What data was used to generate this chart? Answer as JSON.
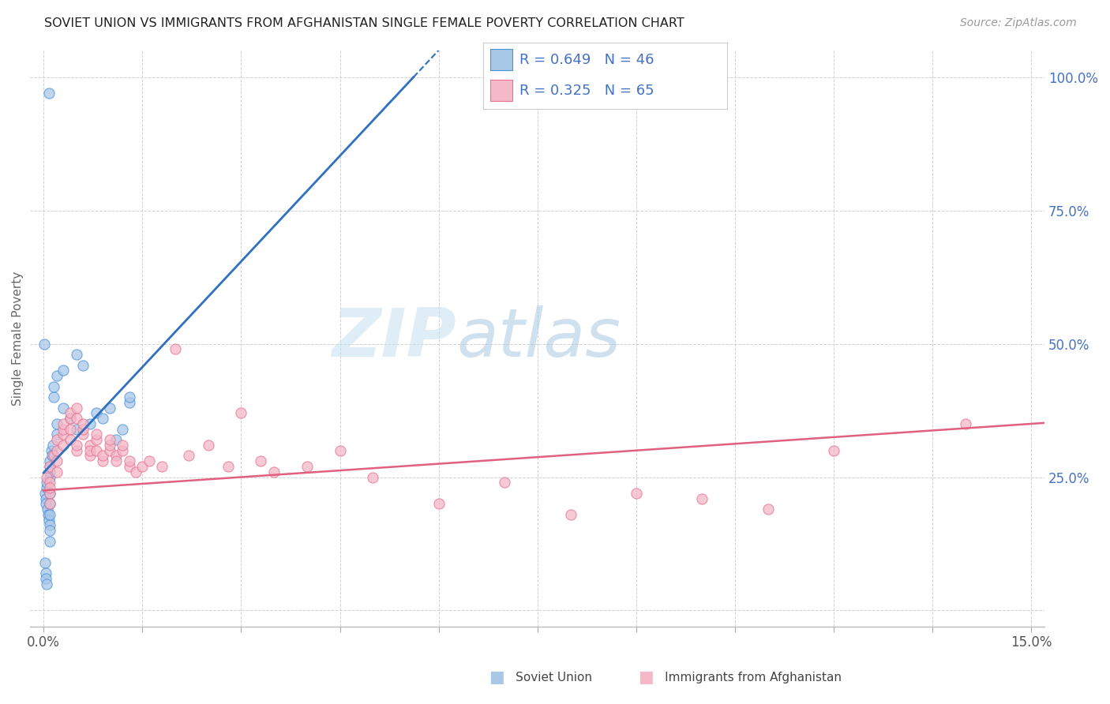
{
  "title": "SOVIET UNION VS IMMIGRANTS FROM AFGHANISTAN SINGLE FEMALE POVERTY CORRELATION CHART",
  "source": "Source: ZipAtlas.com",
  "ylabel": "Single Female Poverty",
  "watermark_zip": "ZIP",
  "watermark_atlas": "atlas",
  "blue_fill": "#a8c8e8",
  "blue_edge": "#4a90d9",
  "blue_line": "#3070c0",
  "pink_fill": "#f4b8c8",
  "pink_edge": "#e87090",
  "pink_line": "#e06080",
  "right_tick_color": "#4472c4",
  "background_color": "#ffffff",
  "grid_color": "#cccccc",
  "legend_r1_text": "R = 0.649   N = 46",
  "legend_r2_text": "R = 0.325   N = 65",
  "xlim": [
    -0.002,
    0.152
  ],
  "ylim": [
    -0.03,
    1.05
  ],
  "soviet_x": [
    0.0002,
    0.0003,
    0.0004,
    0.0005,
    0.0005,
    0.0006,
    0.0007,
    0.0008,
    0.0009,
    0.001,
    0.001,
    0.001,
    0.001,
    0.001,
    0.001,
    0.001,
    0.001,
    0.001,
    0.0012,
    0.0013,
    0.0014,
    0.0015,
    0.0015,
    0.002,
    0.002,
    0.002,
    0.003,
    0.003,
    0.004,
    0.005,
    0.005,
    0.006,
    0.007,
    0.008,
    0.009,
    0.01,
    0.011,
    0.012,
    0.013,
    0.013,
    0.0001,
    0.0002,
    0.0003,
    0.0004,
    0.0005,
    0.0008
  ],
  "soviet_y": [
    0.22,
    0.21,
    0.2,
    0.23,
    0.24,
    0.19,
    0.18,
    0.17,
    0.16,
    0.25,
    0.27,
    0.28,
    0.26,
    0.22,
    0.2,
    0.18,
    0.15,
    0.13,
    0.3,
    0.29,
    0.31,
    0.4,
    0.42,
    0.33,
    0.35,
    0.44,
    0.38,
    0.45,
    0.36,
    0.48,
    0.34,
    0.46,
    0.35,
    0.37,
    0.36,
    0.38,
    0.32,
    0.34,
    0.39,
    0.4,
    0.5,
    0.09,
    0.07,
    0.06,
    0.05,
    0.97
  ],
  "afghan_x": [
    0.0005,
    0.001,
    0.001,
    0.001,
    0.001,
    0.001,
    0.0015,
    0.002,
    0.002,
    0.002,
    0.002,
    0.003,
    0.003,
    0.003,
    0.003,
    0.004,
    0.004,
    0.004,
    0.004,
    0.005,
    0.005,
    0.005,
    0.005,
    0.006,
    0.006,
    0.006,
    0.007,
    0.007,
    0.007,
    0.008,
    0.008,
    0.008,
    0.009,
    0.009,
    0.01,
    0.01,
    0.01,
    0.011,
    0.011,
    0.012,
    0.012,
    0.013,
    0.013,
    0.014,
    0.015,
    0.016,
    0.018,
    0.02,
    0.022,
    0.025,
    0.028,
    0.03,
    0.033,
    0.035,
    0.04,
    0.045,
    0.05,
    0.06,
    0.07,
    0.08,
    0.1,
    0.12,
    0.14,
    0.09,
    0.11
  ],
  "afghan_y": [
    0.25,
    0.22,
    0.24,
    0.27,
    0.23,
    0.2,
    0.29,
    0.3,
    0.32,
    0.28,
    0.26,
    0.31,
    0.33,
    0.34,
    0.35,
    0.36,
    0.37,
    0.34,
    0.32,
    0.38,
    0.36,
    0.3,
    0.31,
    0.33,
    0.34,
    0.35,
    0.31,
    0.29,
    0.3,
    0.32,
    0.33,
    0.3,
    0.28,
    0.29,
    0.3,
    0.31,
    0.32,
    0.29,
    0.28,
    0.3,
    0.31,
    0.27,
    0.28,
    0.26,
    0.27,
    0.28,
    0.27,
    0.49,
    0.29,
    0.31,
    0.27,
    0.37,
    0.28,
    0.26,
    0.27,
    0.3,
    0.25,
    0.2,
    0.24,
    0.18,
    0.21,
    0.3,
    0.35,
    0.22,
    0.19
  ]
}
